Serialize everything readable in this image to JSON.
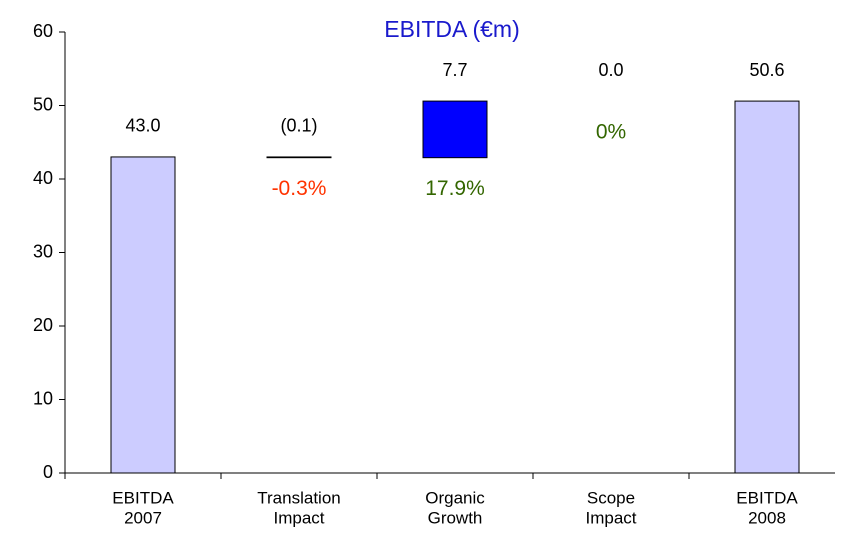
{
  "chart_data": {
    "type": "waterfall",
    "title": "EBITDA (€m)",
    "title_color": "#1a1acc",
    "categories": [
      [
        "EBITDA",
        "2007"
      ],
      [
        "Translation",
        "Impact"
      ],
      [
        "Organic",
        "Growth"
      ],
      [
        "Scope",
        "Impact"
      ],
      [
        "EBITDA",
        "2008"
      ]
    ],
    "kinds": [
      "total",
      "delta",
      "delta",
      "delta",
      "total"
    ],
    "values": [
      43.0,
      -0.1,
      7.7,
      0.0,
      50.6
    ],
    "value_labels": [
      "43.0",
      "(0.1)",
      "7.7",
      "0.0",
      "50.6"
    ],
    "colors": [
      "#ccccff",
      "#000000",
      "#0000ff",
      "#0000ff",
      "#ccccff"
    ],
    "change_labels": [
      null,
      "-0.3%",
      "17.9%",
      "0%",
      null
    ],
    "change_colors": [
      null,
      "#ff3300",
      "#336600",
      "#336600",
      null
    ],
    "ylim": [
      0,
      60
    ],
    "yticks": [
      0,
      10,
      20,
      30,
      40,
      50,
      60
    ]
  }
}
